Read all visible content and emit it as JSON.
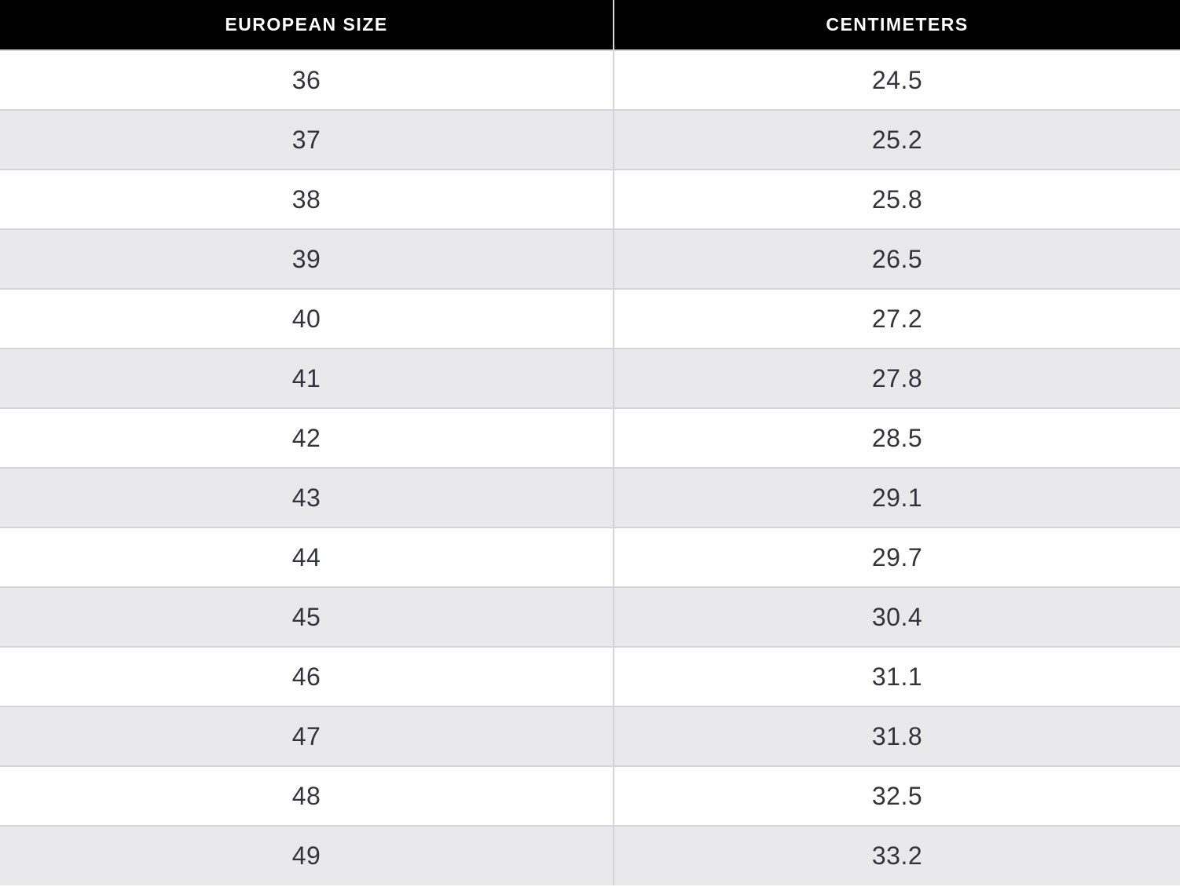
{
  "table": {
    "columns": [
      {
        "label": "EUROPEAN SIZE"
      },
      {
        "label": "CENTIMETERS"
      }
    ],
    "rows": [
      {
        "european_size": "36",
        "centimeters": "24.5"
      },
      {
        "european_size": "37",
        "centimeters": "25.2"
      },
      {
        "european_size": "38",
        "centimeters": "25.8"
      },
      {
        "european_size": "39",
        "centimeters": "26.5"
      },
      {
        "european_size": "40",
        "centimeters": "27.2"
      },
      {
        "european_size": "41",
        "centimeters": "27.8"
      },
      {
        "european_size": "42",
        "centimeters": "28.5"
      },
      {
        "european_size": "43",
        "centimeters": "29.1"
      },
      {
        "european_size": "44",
        "centimeters": "29.7"
      },
      {
        "european_size": "45",
        "centimeters": "30.4"
      },
      {
        "european_size": "46",
        "centimeters": "31.1"
      },
      {
        "european_size": "47",
        "centimeters": "31.8"
      },
      {
        "european_size": "48",
        "centimeters": "32.5"
      },
      {
        "european_size": "49",
        "centimeters": "33.2"
      }
    ]
  },
  "chart_data": {
    "type": "table",
    "title": "",
    "columns": [
      "EUROPEAN SIZE",
      "CENTIMETERS"
    ],
    "categories": [
      36,
      37,
      38,
      39,
      40,
      41,
      42,
      43,
      44,
      45,
      46,
      47,
      48,
      49
    ],
    "values": [
      24.5,
      25.2,
      25.8,
      26.5,
      27.2,
      27.8,
      28.5,
      29.1,
      29.7,
      30.4,
      31.1,
      31.8,
      32.5,
      33.2
    ],
    "layout": {
      "header_style": "black-on-white",
      "row_striping": "white/gray",
      "alignment": "center"
    }
  },
  "colors": {
    "header_bg": "#000000",
    "header_text": "#ffffff",
    "row_bg": "#ffffff",
    "row_alt_bg": "#e9e8ea",
    "border": "#d5d4d6",
    "cell_text": "#33333d"
  }
}
